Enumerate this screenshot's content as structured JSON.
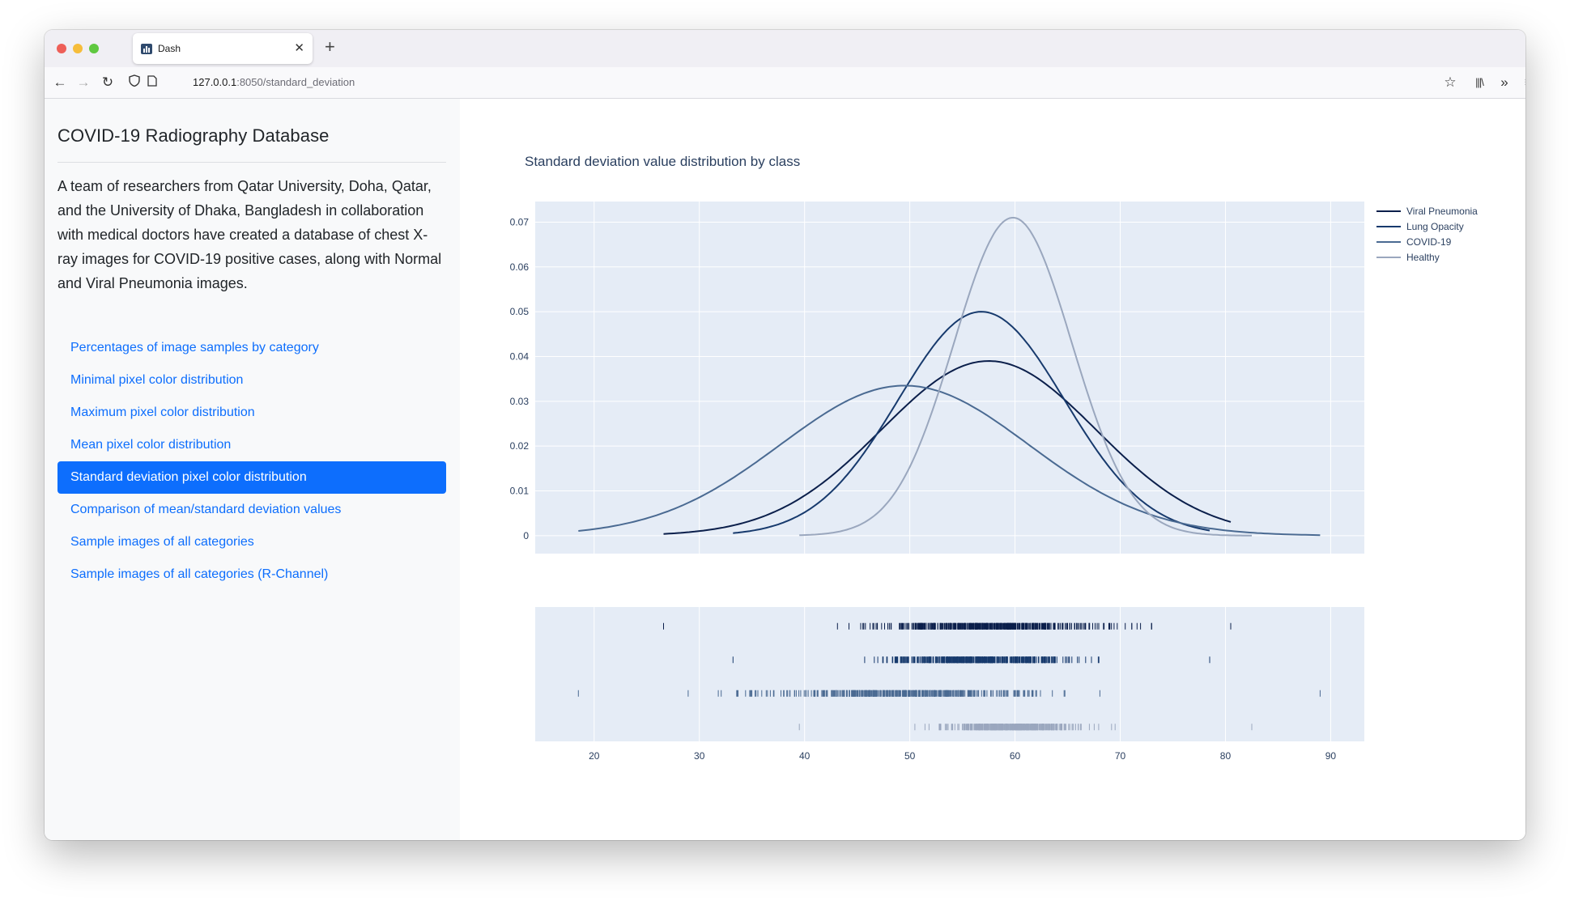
{
  "browser": {
    "tab_title": "Dash",
    "url_host": "127.0.0.1",
    "url_rest": ":8050/standard_deviation"
  },
  "sidebar": {
    "title": "COVID-19 Radiography Database",
    "description": "A team of researchers from Qatar University, Doha, Qatar, and the University of Dhaka, Bangladesh in collaboration with medical doctors have created a database of chest X-ray images for COVID-19 positive cases, along with Normal and Viral Pneumonia images.",
    "nav": [
      {
        "label": "Percentages of image samples by category",
        "active": false
      },
      {
        "label": "Minimal pixel color distribution",
        "active": false
      },
      {
        "label": "Maximum pixel color distribution",
        "active": false
      },
      {
        "label": "Mean pixel color distribution",
        "active": false
      },
      {
        "label": "Standard deviation pixel color distribution",
        "active": true
      },
      {
        "label": "Comparison of mean/standard deviation values",
        "active": false
      },
      {
        "label": "Sample images of all categories",
        "active": false
      },
      {
        "label": "Sample images of all categories (R-Channel)",
        "active": false
      }
    ],
    "active_color": "#0d6efd"
  },
  "chart_data": {
    "type": "line",
    "title": "Standard deviation value distribution by class",
    "xlabel": "",
    "ylabel": "",
    "xlim": [
      14.4,
      93.2
    ],
    "ylim": [
      -0.004,
      0.0746
    ],
    "xticks": [
      20,
      30,
      40,
      50,
      60,
      70,
      80,
      90
    ],
    "yticks": [
      0,
      0.01,
      0.02,
      0.03,
      0.04,
      0.05,
      0.06,
      0.07
    ],
    "ytick_labels": [
      "0",
      "0.01",
      "0.02",
      "0.03",
      "0.04",
      "0.05",
      "0.06",
      "0.07"
    ],
    "grid": true,
    "legend_position": "top-right",
    "series": [
      {
        "name": "Viral Pneumonia",
        "color": "#0b1f4b",
        "x_range": [
          26.6,
          80.5
        ],
        "mean": 57.5,
        "sd": 10.2,
        "peak": 0.039
      },
      {
        "name": "Lung Opacity",
        "color": "#173a6d",
        "x_range": [
          33.2,
          78.5
        ],
        "mean": 56.8,
        "sd": 7.9,
        "peak": 0.05
      },
      {
        "name": "COVID-19",
        "color": "#4a6a92",
        "x_range": [
          18.5,
          89.0
        ],
        "mean": 49.5,
        "sd": 11.8,
        "peak": 0.0335
      },
      {
        "name": "Healthy",
        "color": "#9aa7be",
        "x_range": [
          39.5,
          82.5
        ],
        "mean": 59.8,
        "sd": 5.6,
        "peak": 0.071
      }
    ],
    "rug": [
      {
        "name": "Viral Pneumonia",
        "min": 26.6,
        "max": 80.5,
        "mean": 57.5,
        "sd": 10.2
      },
      {
        "name": "Lung Opacity",
        "min": 33.2,
        "max": 78.5,
        "mean": 56.8,
        "sd": 7.9
      },
      {
        "name": "COVID-19",
        "min": 18.5,
        "max": 89.0,
        "mean": 49.5,
        "sd": 11.8
      },
      {
        "name": "Healthy",
        "min": 39.5,
        "max": 82.5,
        "mean": 59.8,
        "sd": 5.6
      }
    ]
  }
}
